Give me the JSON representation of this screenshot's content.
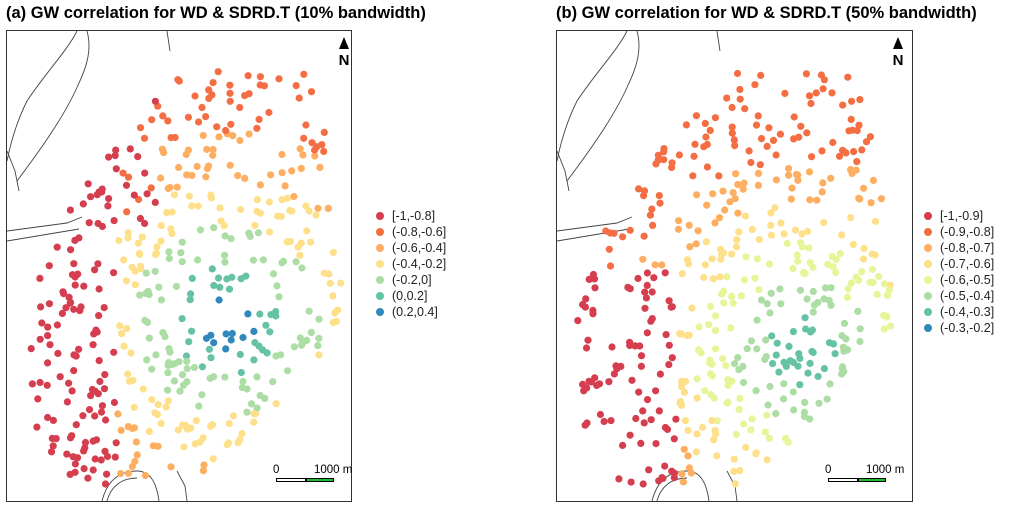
{
  "panels": [
    {
      "id": "a",
      "title": "(a) GW correlation for WD & SDRD.T (10% bandwidth)",
      "legend": [
        {
          "label": "[-1,-0.8]",
          "color": "#d53e4f"
        },
        {
          "label": "(-0.8,-0.6]",
          "color": "#f46d43"
        },
        {
          "label": "(-0.6,-0.4]",
          "color": "#fdae61"
        },
        {
          "label": "(-0.4,-0.2]",
          "color": "#fee08b"
        },
        {
          "label": "(-0.2,0]",
          "color": "#abdda4"
        },
        {
          "label": "(0,0.2]",
          "color": "#66c2a5"
        },
        {
          "label": "(0.2,0.4]",
          "color": "#3288bd"
        }
      ],
      "scale": {
        "start": "0",
        "end": "1000 m"
      },
      "north_label": "N"
    },
    {
      "id": "b",
      "title": "(b) GW correlation for WD & SDRD.T (50% bandwidth)",
      "legend": [
        {
          "label": "[-1,-0.9]",
          "color": "#d53e4f"
        },
        {
          "label": "(-0.9,-0.8]",
          "color": "#f46d43"
        },
        {
          "label": "(-0.8,-0.7]",
          "color": "#fdae61"
        },
        {
          "label": "(-0.7,-0.6]",
          "color": "#fee08b"
        },
        {
          "label": "(-0.6,-0.5]",
          "color": "#e6f598"
        },
        {
          "label": "(-0.5,-0.4]",
          "color": "#abdda4"
        },
        {
          "label": "(-0.4,-0.3]",
          "color": "#66c2a5"
        },
        {
          "label": "(-0.3,-0.2]",
          "color": "#3288bd"
        }
      ],
      "scale": {
        "start": "0",
        "end": "1000 m"
      },
      "north_label": "N"
    }
  ]
}
